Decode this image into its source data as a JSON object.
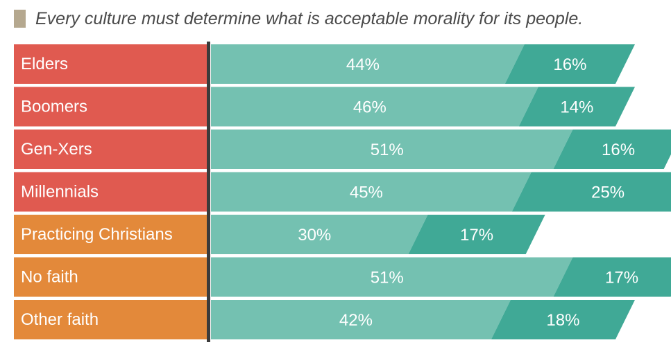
{
  "chart_data": {
    "type": "bar",
    "orientation": "horizontal",
    "stacked": true,
    "title": "Every culture must determine what is acceptable morality for its people.",
    "categories": [
      "Elders",
      "Boomers",
      "Gen-Xers",
      "Millennials",
      "Practicing Christians",
      "No faith",
      "Other faith"
    ],
    "category_groups": [
      "generation",
      "generation",
      "generation",
      "generation",
      "faith",
      "faith",
      "faith"
    ],
    "series": [
      {
        "name": "segment-1",
        "values": [
          44,
          46,
          51,
          45,
          30,
          51,
          42
        ]
      },
      {
        "name": "segment-2",
        "values": [
          16,
          14,
          16,
          25,
          17,
          17,
          18
        ]
      }
    ],
    "value_suffix": "%",
    "legend": "none",
    "colors": {
      "title_swatch": "#b5a88f",
      "generation_label_bg": "#e05a50",
      "faith_label_bg": "#e3893a",
      "segment_1": "#74c1b1",
      "segment_2": "#40a996",
      "axis_line": "#3b3b3b"
    }
  }
}
